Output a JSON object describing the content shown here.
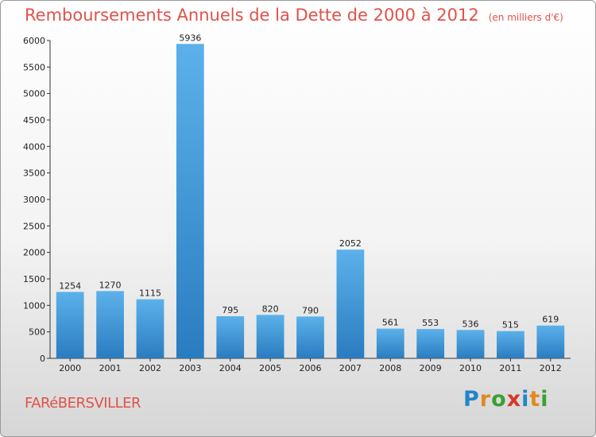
{
  "page": {
    "title": "Remboursements Annuels de la Dette de 2000 à 2012",
    "unit": "(en milliers d'€)",
    "commune": "FARéBERSVILLER",
    "logo": {
      "letters": [
        {
          "char": "P",
          "color": "#1f86c8"
        },
        {
          "char": "r",
          "color": "#e08a1e"
        },
        {
          "char": "o",
          "color": "#3aa035"
        },
        {
          "char": "x",
          "color": "#d8362a"
        },
        {
          "char": "i",
          "color": "#1f86c8"
        },
        {
          "char": "t",
          "color": "#e08a1e"
        },
        {
          "char": "i",
          "color": "#3aa035"
        }
      ]
    }
  },
  "chart_data": {
    "type": "bar",
    "title": "Remboursements Annuels de la Dette de 2000 à 2012",
    "categories": [
      "2000",
      "2001",
      "2002",
      "2003",
      "2004",
      "2005",
      "2006",
      "2007",
      "2008",
      "2009",
      "2010",
      "2011",
      "2012"
    ],
    "values": [
      1254,
      1270,
      1115,
      5936,
      795,
      820,
      790,
      2052,
      561,
      553,
      536,
      515,
      619
    ],
    "value_labels": [
      "1254",
      "1270",
      "1115",
      "5936",
      "795",
      "820",
      "790",
      "2052",
      "561",
      "553",
      "536",
      "515",
      "619"
    ],
    "ylim": [
      0,
      6000
    ],
    "yticks": [
      0,
      500,
      1000,
      1500,
      2000,
      2500,
      3000,
      3500,
      4000,
      4500,
      5000,
      5500,
      6000
    ],
    "ytick_labels": [
      "0",
      "500",
      "1000",
      "1500",
      "2000",
      "2500",
      "3000",
      "3500",
      "4000",
      "4500",
      "5000",
      "5500",
      "6000"
    ],
    "bar_color": "#3f98dc",
    "grid": false,
    "legend": "none"
  }
}
